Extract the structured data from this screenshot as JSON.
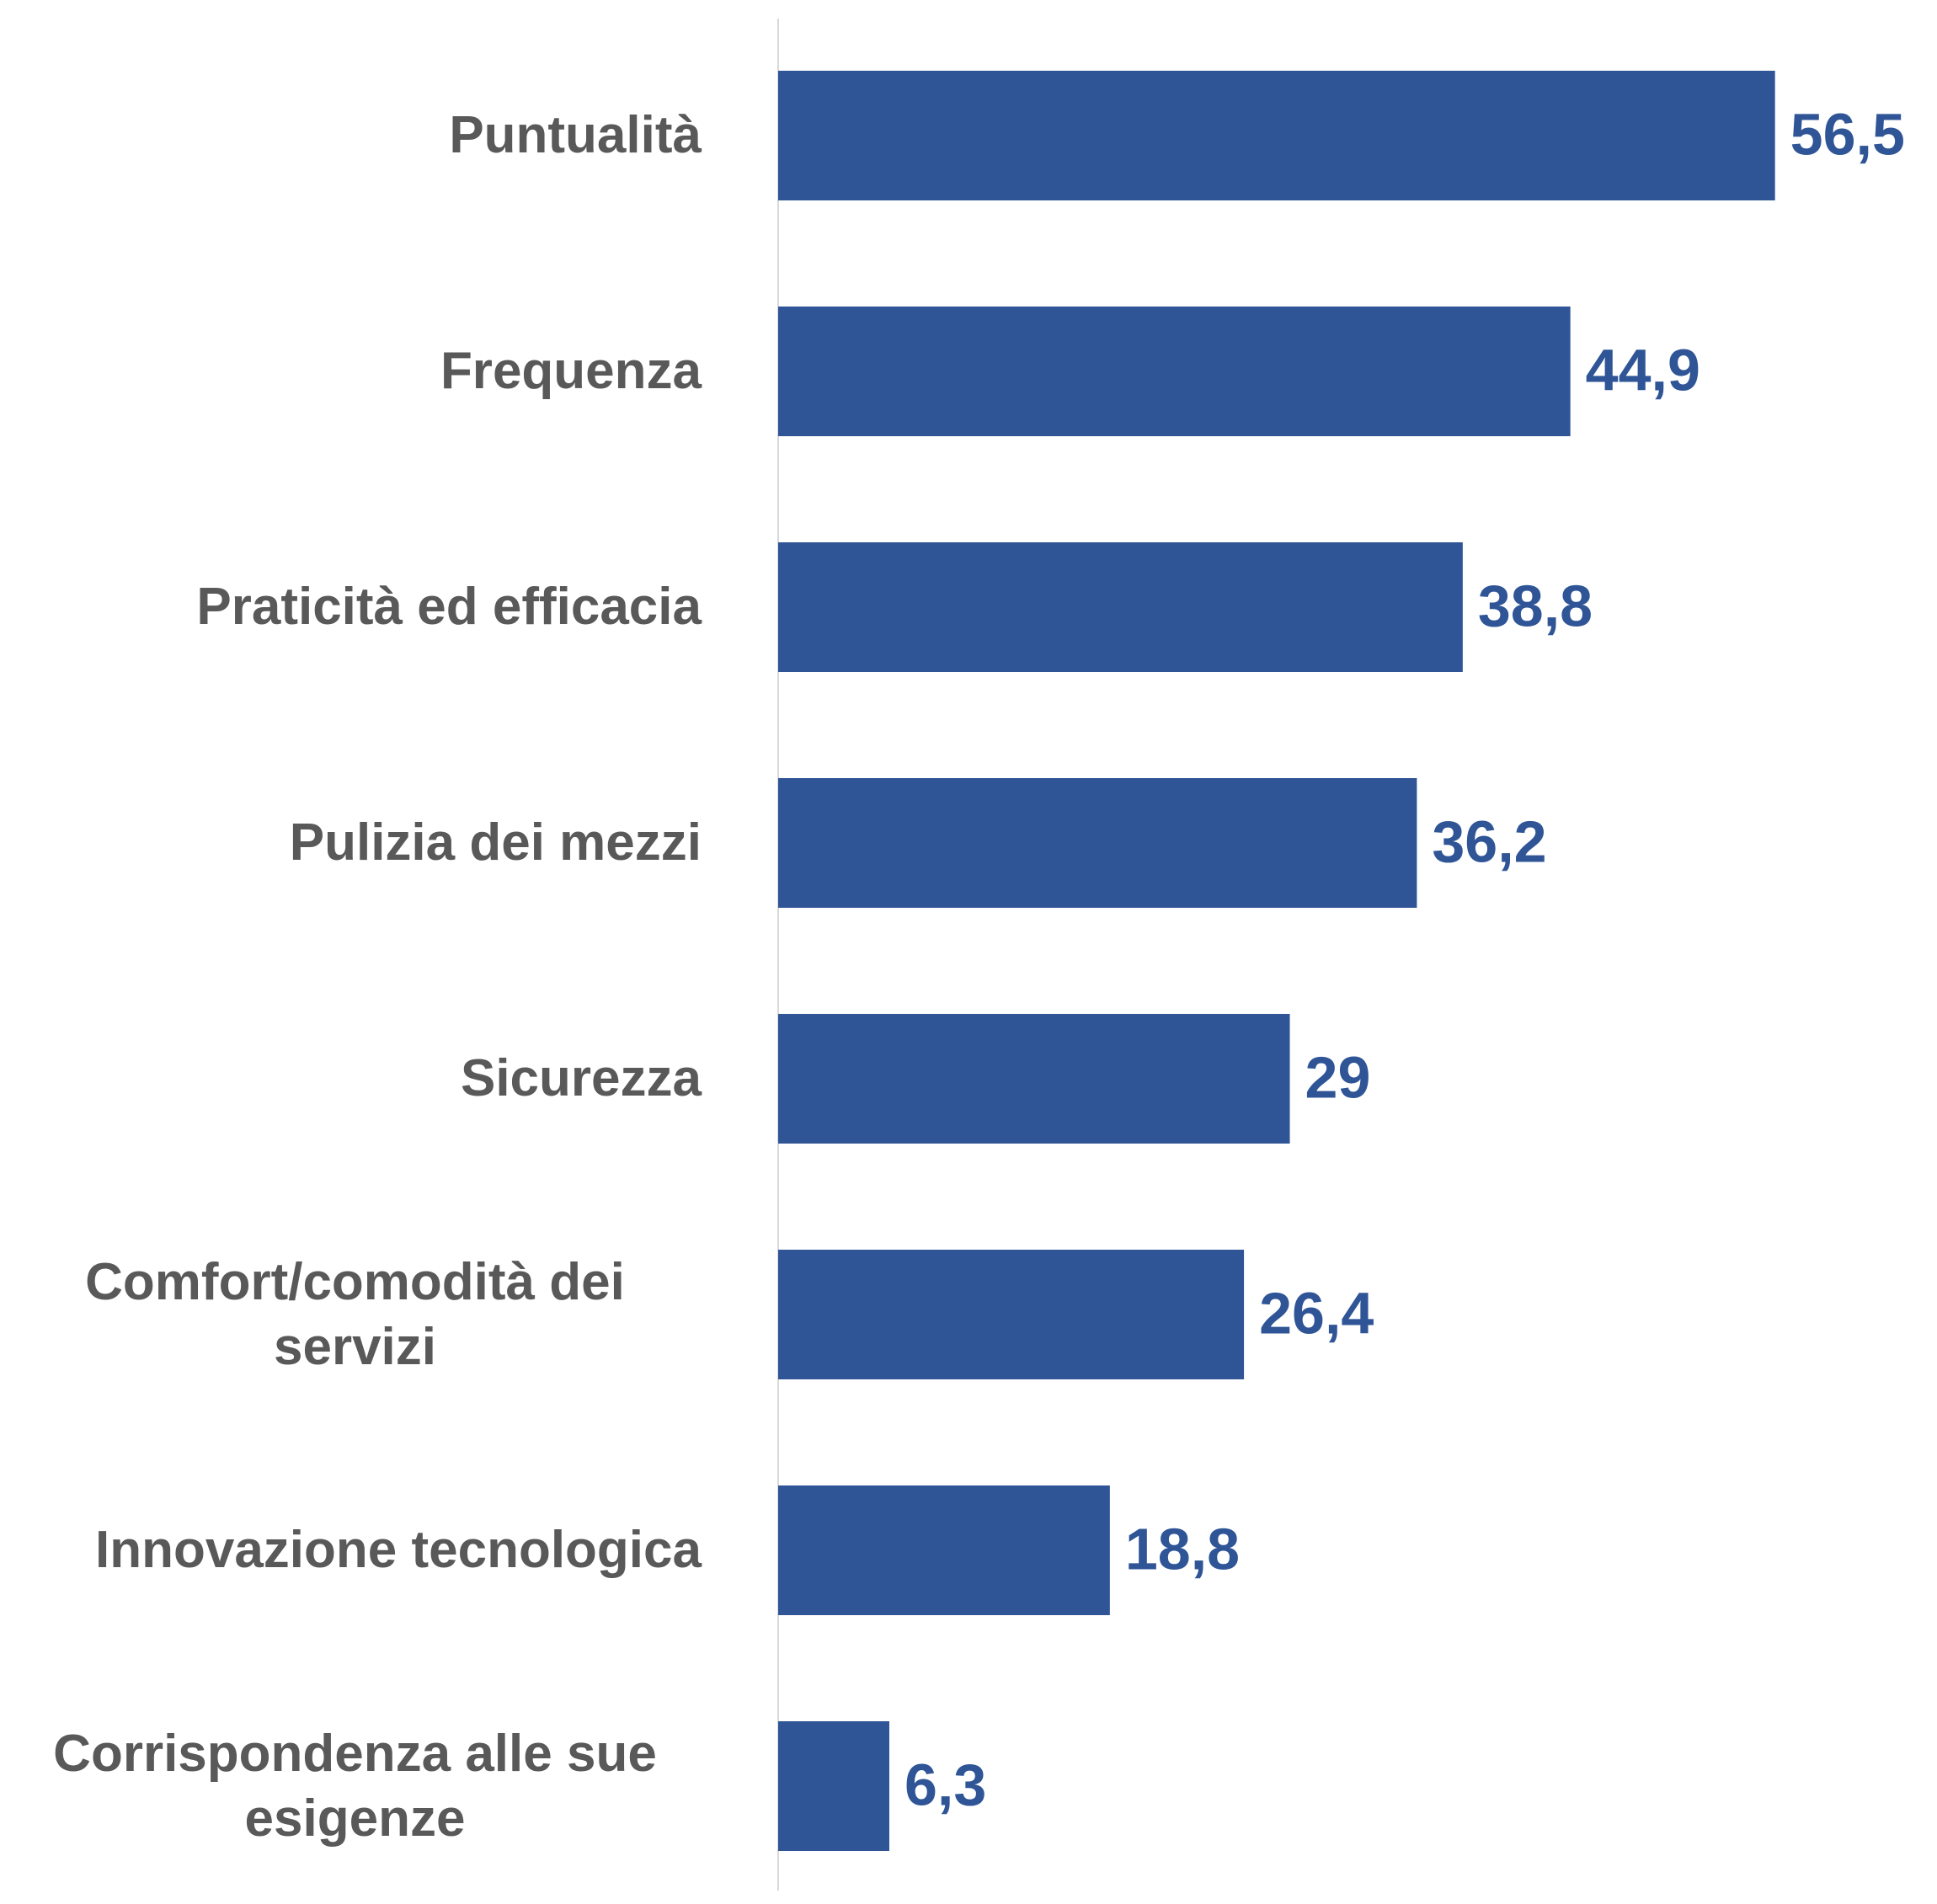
{
  "chart_data": {
    "type": "bar",
    "orientation": "horizontal",
    "categories": [
      "Puntualità",
      "Frequenza",
      "Praticità ed efficacia",
      "Pulizia dei mezzi",
      "Sicurezza",
      "Comfort/comodità dei servizi",
      "Innovazione tecnologica",
      "Corrispondenza alle sue esigenze"
    ],
    "values": [
      56.5,
      44.9,
      38.8,
      36.2,
      29,
      26.4,
      18.8,
      6.3
    ],
    "value_labels": [
      "56,5",
      "44,9",
      "38,8",
      "36,2",
      "29",
      "26,4",
      "18,8",
      "6,3"
    ],
    "color": "#2f5597",
    "xlim": [
      0,
      60
    ]
  }
}
